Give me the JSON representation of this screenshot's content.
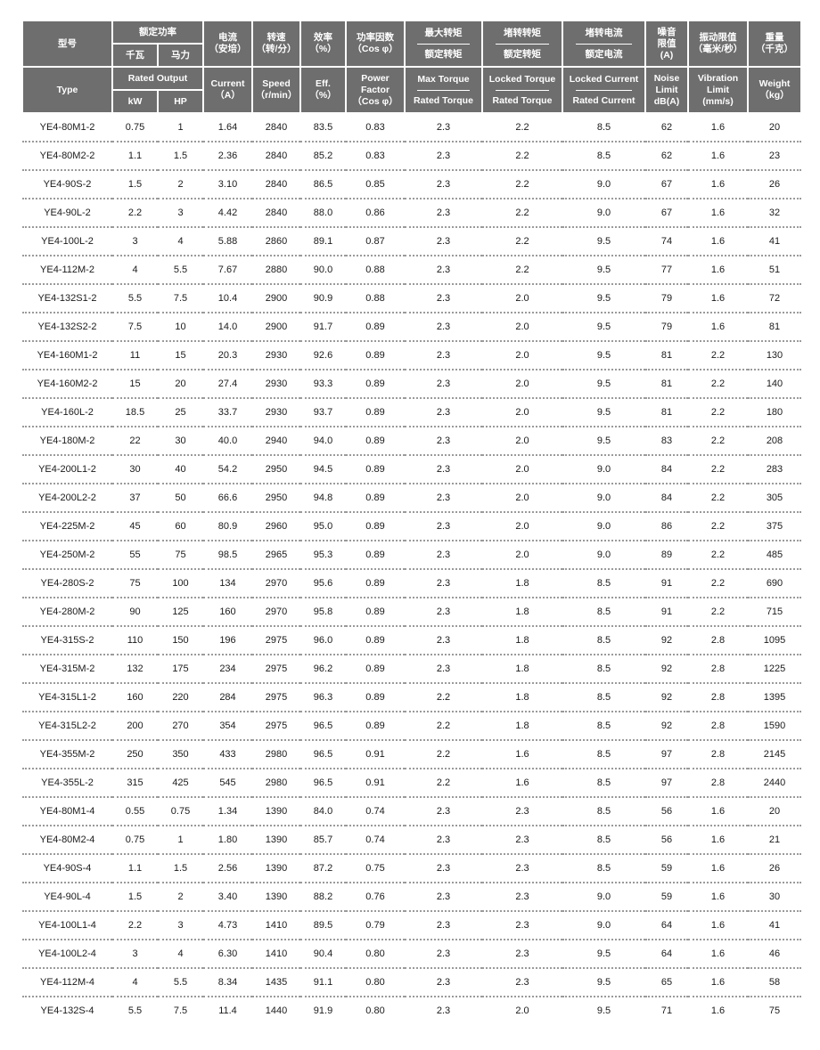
{
  "header_cn": {
    "type": "型号",
    "rated_output": "额定功率",
    "kw": "千瓦",
    "hp": "马力",
    "current": "电流",
    "current_unit": "（安培）",
    "speed": "转速",
    "speed_unit": "（转/分）",
    "eff": "效率",
    "eff_unit": "（%）",
    "pf": "功率因数",
    "pf_unit": "（Cos φ）",
    "max_torque_num": "最大转矩",
    "max_torque_den": "额定转矩",
    "locked_torque_num": "堵转转矩",
    "locked_torque_den": "额定转矩",
    "locked_current_num": "堵转电流",
    "locked_current_den": "额定电流",
    "noise": "噪音",
    "noise2": "限值",
    "noise_unit": "(A)",
    "vibration": "振动限值",
    "vibration_unit": "（毫米/秒）",
    "weight": "重量",
    "weight_unit": "（千克）"
  },
  "header_en": {
    "type": "Type",
    "rated_output": "Rated Output",
    "kw": "kW",
    "hp": "HP",
    "current": "Current",
    "current_unit": "（A）",
    "speed": "Speed",
    "speed_unit": "（r/min）",
    "eff": "Eff.",
    "eff_unit": "（%）",
    "pf": "Power",
    "pf2": "Factor",
    "pf_unit": "（Cos φ）",
    "max_torque_num": "Max Torque",
    "max_torque_den": "Rated Torque",
    "locked_torque_num": "Locked Torque",
    "locked_torque_den": "Rated Torque",
    "locked_current_num": "Locked Current",
    "locked_current_den": "Rated Current",
    "noise": "Noise",
    "noise2": "Limit",
    "noise_unit": "dB(A)",
    "vibration": "Vibration",
    "vibration2": "Limit",
    "vibration_unit": "(mm/s)",
    "weight": "Weight",
    "weight_unit": "（kg）"
  },
  "rows": [
    [
      "YE4-80M1-2",
      "0.75",
      "1",
      "1.64",
      "2840",
      "83.5",
      "0.83",
      "2.3",
      "2.2",
      "8.5",
      "62",
      "1.6",
      "20"
    ],
    [
      "YE4-80M2-2",
      "1.1",
      "1.5",
      "2.36",
      "2840",
      "85.2",
      "0.83",
      "2.3",
      "2.2",
      "8.5",
      "62",
      "1.6",
      "23"
    ],
    [
      "YE4-90S-2",
      "1.5",
      "2",
      "3.10",
      "2840",
      "86.5",
      "0.85",
      "2.3",
      "2.2",
      "9.0",
      "67",
      "1.6",
      "26"
    ],
    [
      "YE4-90L-2",
      "2.2",
      "3",
      "4.42",
      "2840",
      "88.0",
      "0.86",
      "2.3",
      "2.2",
      "9.0",
      "67",
      "1.6",
      "32"
    ],
    [
      "YE4-100L-2",
      "3",
      "4",
      "5.88",
      "2860",
      "89.1",
      "0.87",
      "2.3",
      "2.2",
      "9.5",
      "74",
      "1.6",
      "41"
    ],
    [
      "YE4-112M-2",
      "4",
      "5.5",
      "7.67",
      "2880",
      "90.0",
      "0.88",
      "2.3",
      "2.2",
      "9.5",
      "77",
      "1.6",
      "51"
    ],
    [
      "YE4-132S1-2",
      "5.5",
      "7.5",
      "10.4",
      "2900",
      "90.9",
      "0.88",
      "2.3",
      "2.0",
      "9.5",
      "79",
      "1.6",
      "72"
    ],
    [
      "YE4-132S2-2",
      "7.5",
      "10",
      "14.0",
      "2900",
      "91.7",
      "0.89",
      "2.3",
      "2.0",
      "9.5",
      "79",
      "1.6",
      "81"
    ],
    [
      "YE4-160M1-2",
      "11",
      "15",
      "20.3",
      "2930",
      "92.6",
      "0.89",
      "2.3",
      "2.0",
      "9.5",
      "81",
      "2.2",
      "130"
    ],
    [
      "YE4-160M2-2",
      "15",
      "20",
      "27.4",
      "2930",
      "93.3",
      "0.89",
      "2.3",
      "2.0",
      "9.5",
      "81",
      "2.2",
      "140"
    ],
    [
      "YE4-160L-2",
      "18.5",
      "25",
      "33.7",
      "2930",
      "93.7",
      "0.89",
      "2.3",
      "2.0",
      "9.5",
      "81",
      "2.2",
      "180"
    ],
    [
      "YE4-180M-2",
      "22",
      "30",
      "40.0",
      "2940",
      "94.0",
      "0.89",
      "2.3",
      "2.0",
      "9.5",
      "83",
      "2.2",
      "208"
    ],
    [
      "YE4-200L1-2",
      "30",
      "40",
      "54.2",
      "2950",
      "94.5",
      "0.89",
      "2.3",
      "2.0",
      "9.0",
      "84",
      "2.2",
      "283"
    ],
    [
      "YE4-200L2-2",
      "37",
      "50",
      "66.6",
      "2950",
      "94.8",
      "0.89",
      "2.3",
      "2.0",
      "9.0",
      "84",
      "2.2",
      "305"
    ],
    [
      "YE4-225M-2",
      "45",
      "60",
      "80.9",
      "2960",
      "95.0",
      "0.89",
      "2.3",
      "2.0",
      "9.0",
      "86",
      "2.2",
      "375"
    ],
    [
      "YE4-250M-2",
      "55",
      "75",
      "98.5",
      "2965",
      "95.3",
      "0.89",
      "2.3",
      "2.0",
      "9.0",
      "89",
      "2.2",
      "485"
    ],
    [
      "YE4-280S-2",
      "75",
      "100",
      "134",
      "2970",
      "95.6",
      "0.89",
      "2.3",
      "1.8",
      "8.5",
      "91",
      "2.2",
      "690"
    ],
    [
      "YE4-280M-2",
      "90",
      "125",
      "160",
      "2970",
      "95.8",
      "0.89",
      "2.3",
      "1.8",
      "8.5",
      "91",
      "2.2",
      "715"
    ],
    [
      "YE4-315S-2",
      "110",
      "150",
      "196",
      "2975",
      "96.0",
      "0.89",
      "2.3",
      "1.8",
      "8.5",
      "92",
      "2.8",
      "1095"
    ],
    [
      "YE4-315M-2",
      "132",
      "175",
      "234",
      "2975",
      "96.2",
      "0.89",
      "2.3",
      "1.8",
      "8.5",
      "92",
      "2.8",
      "1225"
    ],
    [
      "YE4-315L1-2",
      "160",
      "220",
      "284",
      "2975",
      "96.3",
      "0.89",
      "2.2",
      "1.8",
      "8.5",
      "92",
      "2.8",
      "1395"
    ],
    [
      "YE4-315L2-2",
      "200",
      "270",
      "354",
      "2975",
      "96.5",
      "0.89",
      "2.2",
      "1.8",
      "8.5",
      "92",
      "2.8",
      "1590"
    ],
    [
      "YE4-355M-2",
      "250",
      "350",
      "433",
      "2980",
      "96.5",
      "0.91",
      "2.2",
      "1.6",
      "8.5",
      "97",
      "2.8",
      "2145"
    ],
    [
      "YE4-355L-2",
      "315",
      "425",
      "545",
      "2980",
      "96.5",
      "0.91",
      "2.2",
      "1.6",
      "8.5",
      "97",
      "2.8",
      "2440"
    ],
    [
      "YE4-80M1-4",
      "0.55",
      "0.75",
      "1.34",
      "1390",
      "84.0",
      "0.74",
      "2.3",
      "2.3",
      "8.5",
      "56",
      "1.6",
      "20"
    ],
    [
      "YE4-80M2-4",
      "0.75",
      "1",
      "1.80",
      "1390",
      "85.7",
      "0.74",
      "2.3",
      "2.3",
      "8.5",
      "56",
      "1.6",
      "21"
    ],
    [
      "YE4-90S-4",
      "1.1",
      "1.5",
      "2.56",
      "1390",
      "87.2",
      "0.75",
      "2.3",
      "2.3",
      "8.5",
      "59",
      "1.6",
      "26"
    ],
    [
      "YE4-90L-4",
      "1.5",
      "2",
      "3.40",
      "1390",
      "88.2",
      "0.76",
      "2.3",
      "2.3",
      "9.0",
      "59",
      "1.6",
      "30"
    ],
    [
      "YE4-100L1-4",
      "2.2",
      "3",
      "4.73",
      "1410",
      "89.5",
      "0.79",
      "2.3",
      "2.3",
      "9.0",
      "64",
      "1.6",
      "41"
    ],
    [
      "YE4-100L2-4",
      "3",
      "4",
      "6.30",
      "1410",
      "90.4",
      "0.80",
      "2.3",
      "2.3",
      "9.5",
      "64",
      "1.6",
      "46"
    ],
    [
      "YE4-112M-4",
      "4",
      "5.5",
      "8.34",
      "1435",
      "91.1",
      "0.80",
      "2.3",
      "2.3",
      "9.5",
      "65",
      "1.6",
      "58"
    ],
    [
      "YE4-132S-4",
      "5.5",
      "7.5",
      "11.4",
      "1440",
      "91.9",
      "0.80",
      "2.3",
      "2.0",
      "9.5",
      "71",
      "1.6",
      "75"
    ]
  ],
  "colors": {
    "header_bg": "#6e6e6e",
    "header_text": "#ffffff",
    "row_divider": "#9a9a9a"
  }
}
